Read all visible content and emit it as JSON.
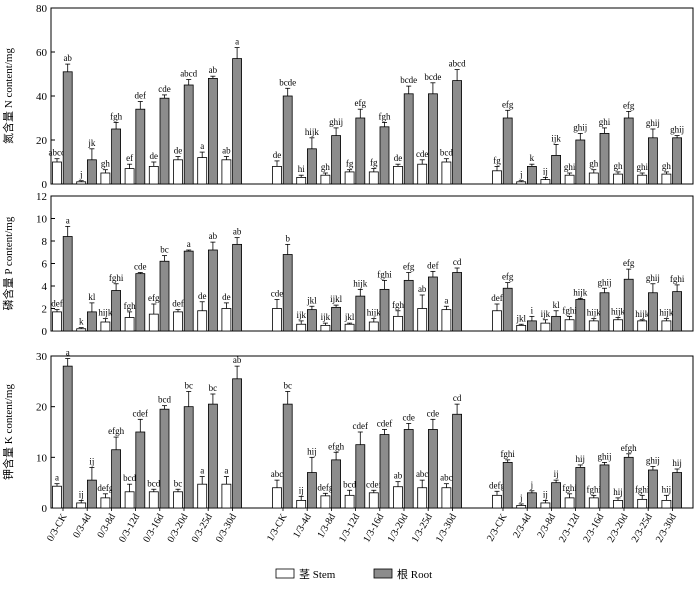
{
  "chart_data": {
    "type": "bar",
    "categories": [
      "0/3-CK",
      "0/3-4d",
      "0/3-8d",
      "0/3-12d",
      "0/3-16d",
      "0/3-20d",
      "0/3-25d",
      "0/3-30d",
      "1/3-CK",
      "1/3-4d",
      "1/3-8d",
      "1/3-12d",
      "1/3-16d",
      "1/3-20d",
      "1/3-25d",
      "1/3-30d",
      "2/3-CK",
      "2/3-4d",
      "2/3-8d",
      "2/3-12d",
      "2/3-16d",
      "2/3-20d",
      "2/3-25d",
      "2/3-30d"
    ],
    "legend": [
      {
        "key": "stem",
        "label": "茎 Stem",
        "color": "#ffffff"
      },
      {
        "key": "root",
        "label": "根 Root",
        "color": "#8c8c8c"
      }
    ],
    "panels": [
      {
        "ylabel": "氮含量 N content/mg",
        "ylim": [
          0,
          80
        ],
        "yticks": [
          "0",
          "20",
          "40",
          "60",
          "80"
        ],
        "stem": [
          10,
          1,
          5,
          7,
          8,
          11,
          12,
          11,
          8,
          3,
          4,
          5.5,
          5.5,
          8,
          9,
          10,
          6,
          1,
          2,
          4,
          5,
          4.5,
          4,
          4.5
        ],
        "stem_err": [
          1.5,
          0.5,
          1.5,
          2,
          2,
          1.5,
          2.5,
          1.5,
          2.5,
          1,
          1,
          1,
          1.5,
          1,
          2,
          1.5,
          2,
          0.5,
          1,
          1,
          1.5,
          1,
          1,
          1
        ],
        "stem_sig": [
          "abcd",
          "j",
          "gh",
          "ef",
          "de",
          "de",
          "a",
          "ab",
          "de",
          "hi",
          "gh",
          "fg",
          "fg",
          "de",
          "cde",
          "bcd",
          "fg",
          "j",
          "ij",
          "ghi",
          "gh",
          "gh",
          "ghi",
          "gh"
        ],
        "root": [
          51,
          11,
          25,
          34,
          39,
          45,
          48,
          57,
          40,
          16,
          22,
          30,
          26,
          41,
          41,
          47,
          30,
          8,
          13,
          20,
          23,
          30,
          21,
          21
        ],
        "root_err": [
          3.5,
          5,
          3,
          3.5,
          1.5,
          2.5,
          1,
          5,
          3.5,
          5,
          3.5,
          4,
          2,
          3.5,
          5,
          5,
          3.5,
          1,
          5,
          3,
          2.5,
          3,
          4,
          1
        ],
        "root_sig": [
          "ab",
          "jk",
          "fgh",
          "def",
          "cde",
          "abcd",
          "ab",
          "a",
          "bcde",
          "hijk",
          "ghij",
          "efg",
          "fgh",
          "bcde",
          "bcde",
          "abcd",
          "efg",
          "k",
          "ijk",
          "ghij",
          "ghi",
          "efg",
          "ghij",
          "ghij"
        ]
      },
      {
        "ylabel": "磷含量 P content/mg",
        "ylim": [
          0,
          12
        ],
        "yticks": [
          "0",
          "2",
          "4",
          "6",
          "8",
          "10",
          "12"
        ],
        "stem": [
          1.7,
          0.2,
          0.8,
          1.2,
          1.5,
          1.7,
          1.8,
          2.0,
          2.0,
          0.6,
          0.5,
          0.6,
          0.8,
          1.3,
          2.0,
          1.9,
          1.8,
          0.5,
          0.7,
          1.0,
          0.9,
          1.0,
          0.9,
          0.9
        ],
        "stem_err": [
          0.2,
          0.1,
          0.3,
          0.5,
          0.9,
          0.2,
          0.8,
          0.5,
          0.8,
          0.3,
          0.2,
          0.1,
          0.3,
          0.5,
          1.2,
          0.3,
          0.6,
          0.1,
          0.3,
          0.3,
          0.2,
          0.2,
          0.1,
          0.2
        ],
        "stem_sig": [
          "def",
          "k",
          "hijk",
          "fgh",
          "efg",
          "def",
          "de",
          "de",
          "cde",
          "ijk",
          "ijk",
          "jkl",
          "hijk",
          "fgh",
          "ab",
          "a",
          "def",
          "jkl",
          "ijk",
          "fghi",
          "hijk",
          "hijk",
          "hijk",
          "hijk"
        ],
        "root": [
          8.4,
          1.7,
          3.6,
          5.1,
          6.2,
          7.1,
          7.2,
          7.7,
          6.8,
          1.9,
          2.1,
          3.1,
          3.7,
          4.5,
          4.8,
          5.2,
          3.8,
          0.9,
          1.3,
          2.8,
          3.4,
          4.6,
          3.4,
          3.5
        ],
        "root_err": [
          0.9,
          0.8,
          0.6,
          0.1,
          0.5,
          0.1,
          0.7,
          0.6,
          0.9,
          0.3,
          0.2,
          0.6,
          0.8,
          0.7,
          0.5,
          0.4,
          0.5,
          0.4,
          0.5,
          0.1,
          0.4,
          0.9,
          0.8,
          0.6
        ],
        "root_sig": [
          "a",
          "kl",
          "fghi",
          "cde",
          "bc",
          "a",
          "ab",
          "ab",
          "b",
          "jkl",
          "ijkl",
          "hijk",
          "fghi",
          "efg",
          "def",
          "cd",
          "efg",
          "i",
          "kl",
          "hijk",
          "ghij",
          "efg",
          "ghij",
          "fghi"
        ]
      },
      {
        "ylabel": "钾含量 K content/mg",
        "ylim": [
          0,
          30
        ],
        "yticks": [
          "0",
          "10",
          "20",
          "30"
        ],
        "stem": [
          4.3,
          1,
          2,
          3.2,
          3.2,
          3.2,
          4.7,
          4.7,
          4.0,
          1.5,
          2.4,
          2.5,
          3.0,
          4.2,
          4.0,
          4.0,
          2.5,
          0.5,
          1,
          2,
          2,
          1.5,
          1.7,
          1.5
        ],
        "stem_err": [
          0.5,
          0.5,
          0.8,
          1.5,
          0.5,
          0.5,
          1.5,
          1.5,
          1.5,
          0.8,
          0.5,
          1.0,
          0.5,
          1.0,
          1.5,
          0.8,
          0.8,
          0.3,
          0.5,
          0.8,
          0.5,
          0.5,
          0.8,
          1.0
        ],
        "stem_sig": [
          "a",
          "ij",
          "defg",
          "bcd",
          "bcd",
          "bc",
          "a",
          "a",
          "abc",
          "ij",
          "defg",
          "bcd",
          "cdef",
          "ab",
          "abc",
          "abc",
          "defg",
          "j",
          "ij",
          "fghi",
          "fghi",
          "hij",
          "fghi",
          "hij"
        ],
        "root": [
          28,
          5.5,
          11.5,
          15,
          19.5,
          20,
          20.5,
          25.5,
          20.5,
          7,
          9.5,
          12.5,
          14.5,
          15.5,
          15.5,
          18.5,
          9,
          3,
          5,
          8,
          8.5,
          10,
          7.5,
          7
        ],
        "root_err": [
          1.5,
          2.5,
          2.5,
          2.5,
          0.7,
          3,
          2,
          2.5,
          2.5,
          3,
          1.5,
          2.5,
          1,
          1.2,
          2,
          2,
          0.5,
          0.4,
          0.5,
          0.5,
          0.5,
          0.7,
          0.7,
          0.7
        ],
        "root_sig": [
          "a",
          "ij",
          "efgh",
          "cdef",
          "bcd",
          "bc",
          "bc",
          "ab",
          "bc",
          "hij",
          "efgh",
          "cdef",
          "cdef",
          "cde",
          "cde",
          "cd",
          "fghi",
          "j",
          "ij",
          "hij",
          "ghij",
          "efgh",
          "ghij",
          "hij"
        ]
      }
    ]
  }
}
